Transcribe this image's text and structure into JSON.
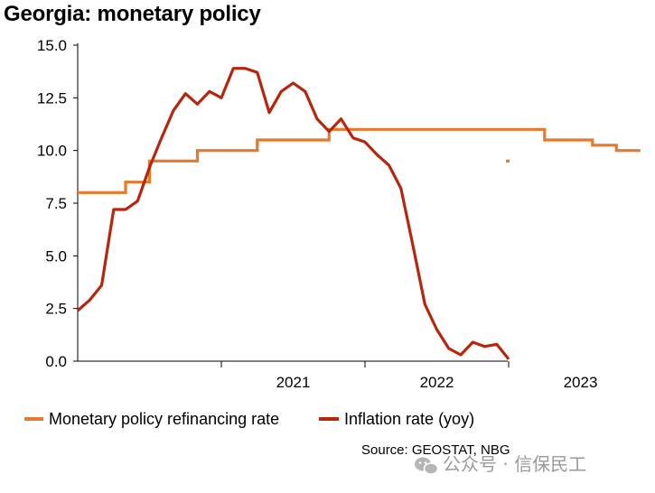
{
  "chart_data": {
    "type": "line",
    "title": "Georgia: monetary policy",
    "xlabel": "",
    "ylabel": "",
    "ylim": [
      0,
      15
    ],
    "yticks": [
      "0.0",
      "2.5",
      "5.0",
      "7.5",
      "10.0",
      "12.5",
      "15.0"
    ],
    "xticks": [
      "2021",
      "2022",
      "2023"
    ],
    "grid": false,
    "legend_position": "bottom",
    "source": "Source: GEOSTAT, NBG",
    "colors": {
      "refinancing": "#E8782A",
      "inflation": "#B7250C"
    },
    "series": [
      {
        "name": "Monetary policy refinancing rate",
        "x": [
          "2020-01",
          "2020-02",
          "2020-03",
          "2020-04",
          "2020-05",
          "2020-06",
          "2020-07",
          "2020-08",
          "2020-09",
          "2020-10",
          "2020-11",
          "2020-12",
          "2021-01",
          "2021-02",
          "2021-03",
          "2021-04",
          "2021-05",
          "2021-06",
          "2021-07",
          "2021-08",
          "2021-09",
          "2021-10",
          "2021-11",
          "2021-12",
          "2022-01",
          "2022-02",
          "2022-03",
          "2022-04",
          "2022-05",
          "2022-06",
          "2022-07",
          "2022-08",
          "2022-09",
          "2022-10",
          "2022-11",
          "2022-12",
          "2023-01",
          "2023-02",
          "2023-03",
          "2023-04",
          "2023-05",
          "2023-06",
          "2023-07",
          "2023-08",
          "2023-09",
          "2023-10",
          "2023-11"
        ],
        "values": [
          8.0,
          8.0,
          8.0,
          8.0,
          8.5,
          8.5,
          9.5,
          9.5,
          9.5,
          9.5,
          10.0,
          10.0,
          10.0,
          10.0,
          10.0,
          10.5,
          10.5,
          10.5,
          10.5,
          10.5,
          10.5,
          11.0,
          11.0,
          11.0,
          11.0,
          11.0,
          11.0,
          11.0,
          11.0,
          11.0,
          11.0,
          11.0,
          11.0,
          11.0,
          11.0,
          11.0,
          11.0,
          11.0,
          11.0,
          10.5,
          10.5,
          10.5,
          10.5,
          10.25,
          10.25,
          10.0,
          10.0
        ]
      },
      {
        "name": "Inflation rate (yoy)",
        "x": [
          "2020-01",
          "2020-02",
          "2020-03",
          "2020-04",
          "2020-05",
          "2020-06",
          "2020-07",
          "2020-08",
          "2020-09",
          "2020-10",
          "2020-11",
          "2020-12",
          "2021-01",
          "2021-02",
          "2021-03",
          "2021-04",
          "2021-05",
          "2021-06",
          "2021-07",
          "2021-08",
          "2021-09",
          "2021-10",
          "2021-11",
          "2021-12",
          "2022-01",
          "2022-02",
          "2022-03",
          "2022-04",
          "2022-05",
          "2022-06",
          "2022-07",
          "2022-08",
          "2022-09",
          "2022-10",
          "2022-11",
          "2022-12",
          "2023-01",
          "2023-02",
          "2023-03",
          "2023-04",
          "2023-05",
          "2023-06",
          "2023-07",
          "2023-08",
          "2023-09",
          "2023-10",
          "2023-11"
        ],
        "values": [
          2.4,
          2.9,
          3.6,
          7.2,
          7.2,
          7.6,
          9.2,
          10.6,
          11.9,
          12.7,
          12.2,
          12.8,
          12.5,
          13.9,
          13.9,
          13.7,
          11.8,
          12.8,
          13.2,
          12.8,
          11.5,
          10.9,
          11.5,
          10.6,
          10.4,
          9.8,
          9.3,
          8.2,
          5.5,
          2.7,
          1.5,
          0.6,
          0.3,
          0.9,
          0.7,
          0.8,
          0.1,
          null,
          null,
          null,
          null,
          null,
          null,
          null,
          null,
          null,
          null
        ]
      }
    ]
  },
  "watermark": "公众号 · 信保民工"
}
